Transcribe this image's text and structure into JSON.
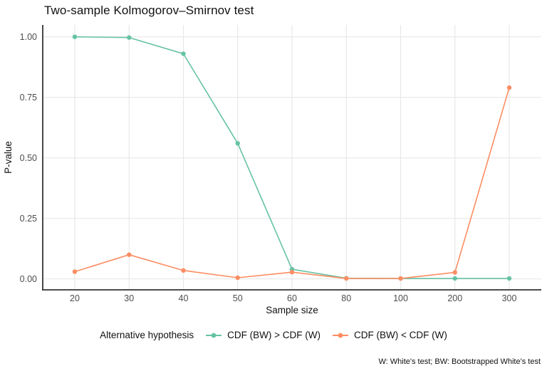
{
  "title": "Two-sample Kolmogorov–Smirnov test",
  "caption": "W: White's test; BW: Bootstrapped White's test",
  "legend": {
    "title": "Alternative hypothesis",
    "items": [
      {
        "label": "CDF (BW) > CDF (W)",
        "color": "#66C2A5"
      },
      {
        "label": "CDF (BW) < CDF (W)",
        "color": "#FC8D62"
      }
    ]
  },
  "chart_data": {
    "type": "line",
    "title": "Two-sample Kolmogorov–Smirnov test",
    "xlabel": "Sample size",
    "ylabel": "P-value",
    "x_scale": "discrete",
    "categories": [
      20,
      30,
      40,
      50,
      60,
      80,
      100,
      200,
      300
    ],
    "series": [
      {
        "name": "CDF (BW) > CDF (W)",
        "color": "#66C2A5",
        "values": [
          1.0,
          0.997,
          0.93,
          0.56,
          0.04,
          0.003,
          0.002,
          0.002,
          0.002
        ]
      },
      {
        "name": "CDF (BW) < CDF (W)",
        "color": "#FC8D62",
        "values": [
          0.03,
          0.1,
          0.035,
          0.005,
          0.028,
          0.002,
          0.002,
          0.027,
          0.79
        ]
      }
    ],
    "ylim": [
      0,
      1
    ],
    "yticks": [
      0,
      0.25,
      0.5,
      0.75,
      1
    ],
    "ytick_labels": [
      "0.00",
      "0.25",
      "0.50",
      "0.75",
      "1.00"
    ],
    "xtick_labels": [
      "20",
      "30",
      "40",
      "50",
      "60",
      "80",
      "100",
      "200",
      "300"
    ],
    "grid": true,
    "legend_position": "bottom",
    "colors": {
      "grid": "#E8E8E8",
      "axis_line": "#333333",
      "tick_text": "#4D4D4D",
      "axis_title_text": "#111111"
    }
  }
}
